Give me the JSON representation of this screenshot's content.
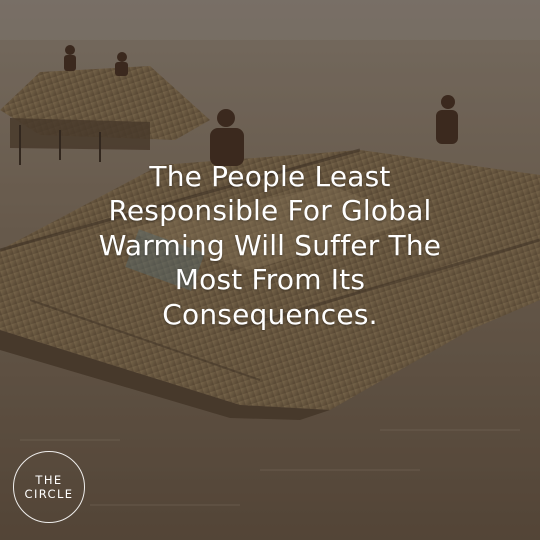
{
  "quote": {
    "lines": [
      "The People Least",
      "Responsible For Global",
      "Warming Will Suffer The",
      "Most From Its",
      "Consequences."
    ]
  },
  "logo": {
    "line1": "THE",
    "line2": "CIRCLE"
  },
  "colors": {
    "text": "#ffffff",
    "water": "#8a7a68",
    "thatch": "#8f7a5c"
  }
}
